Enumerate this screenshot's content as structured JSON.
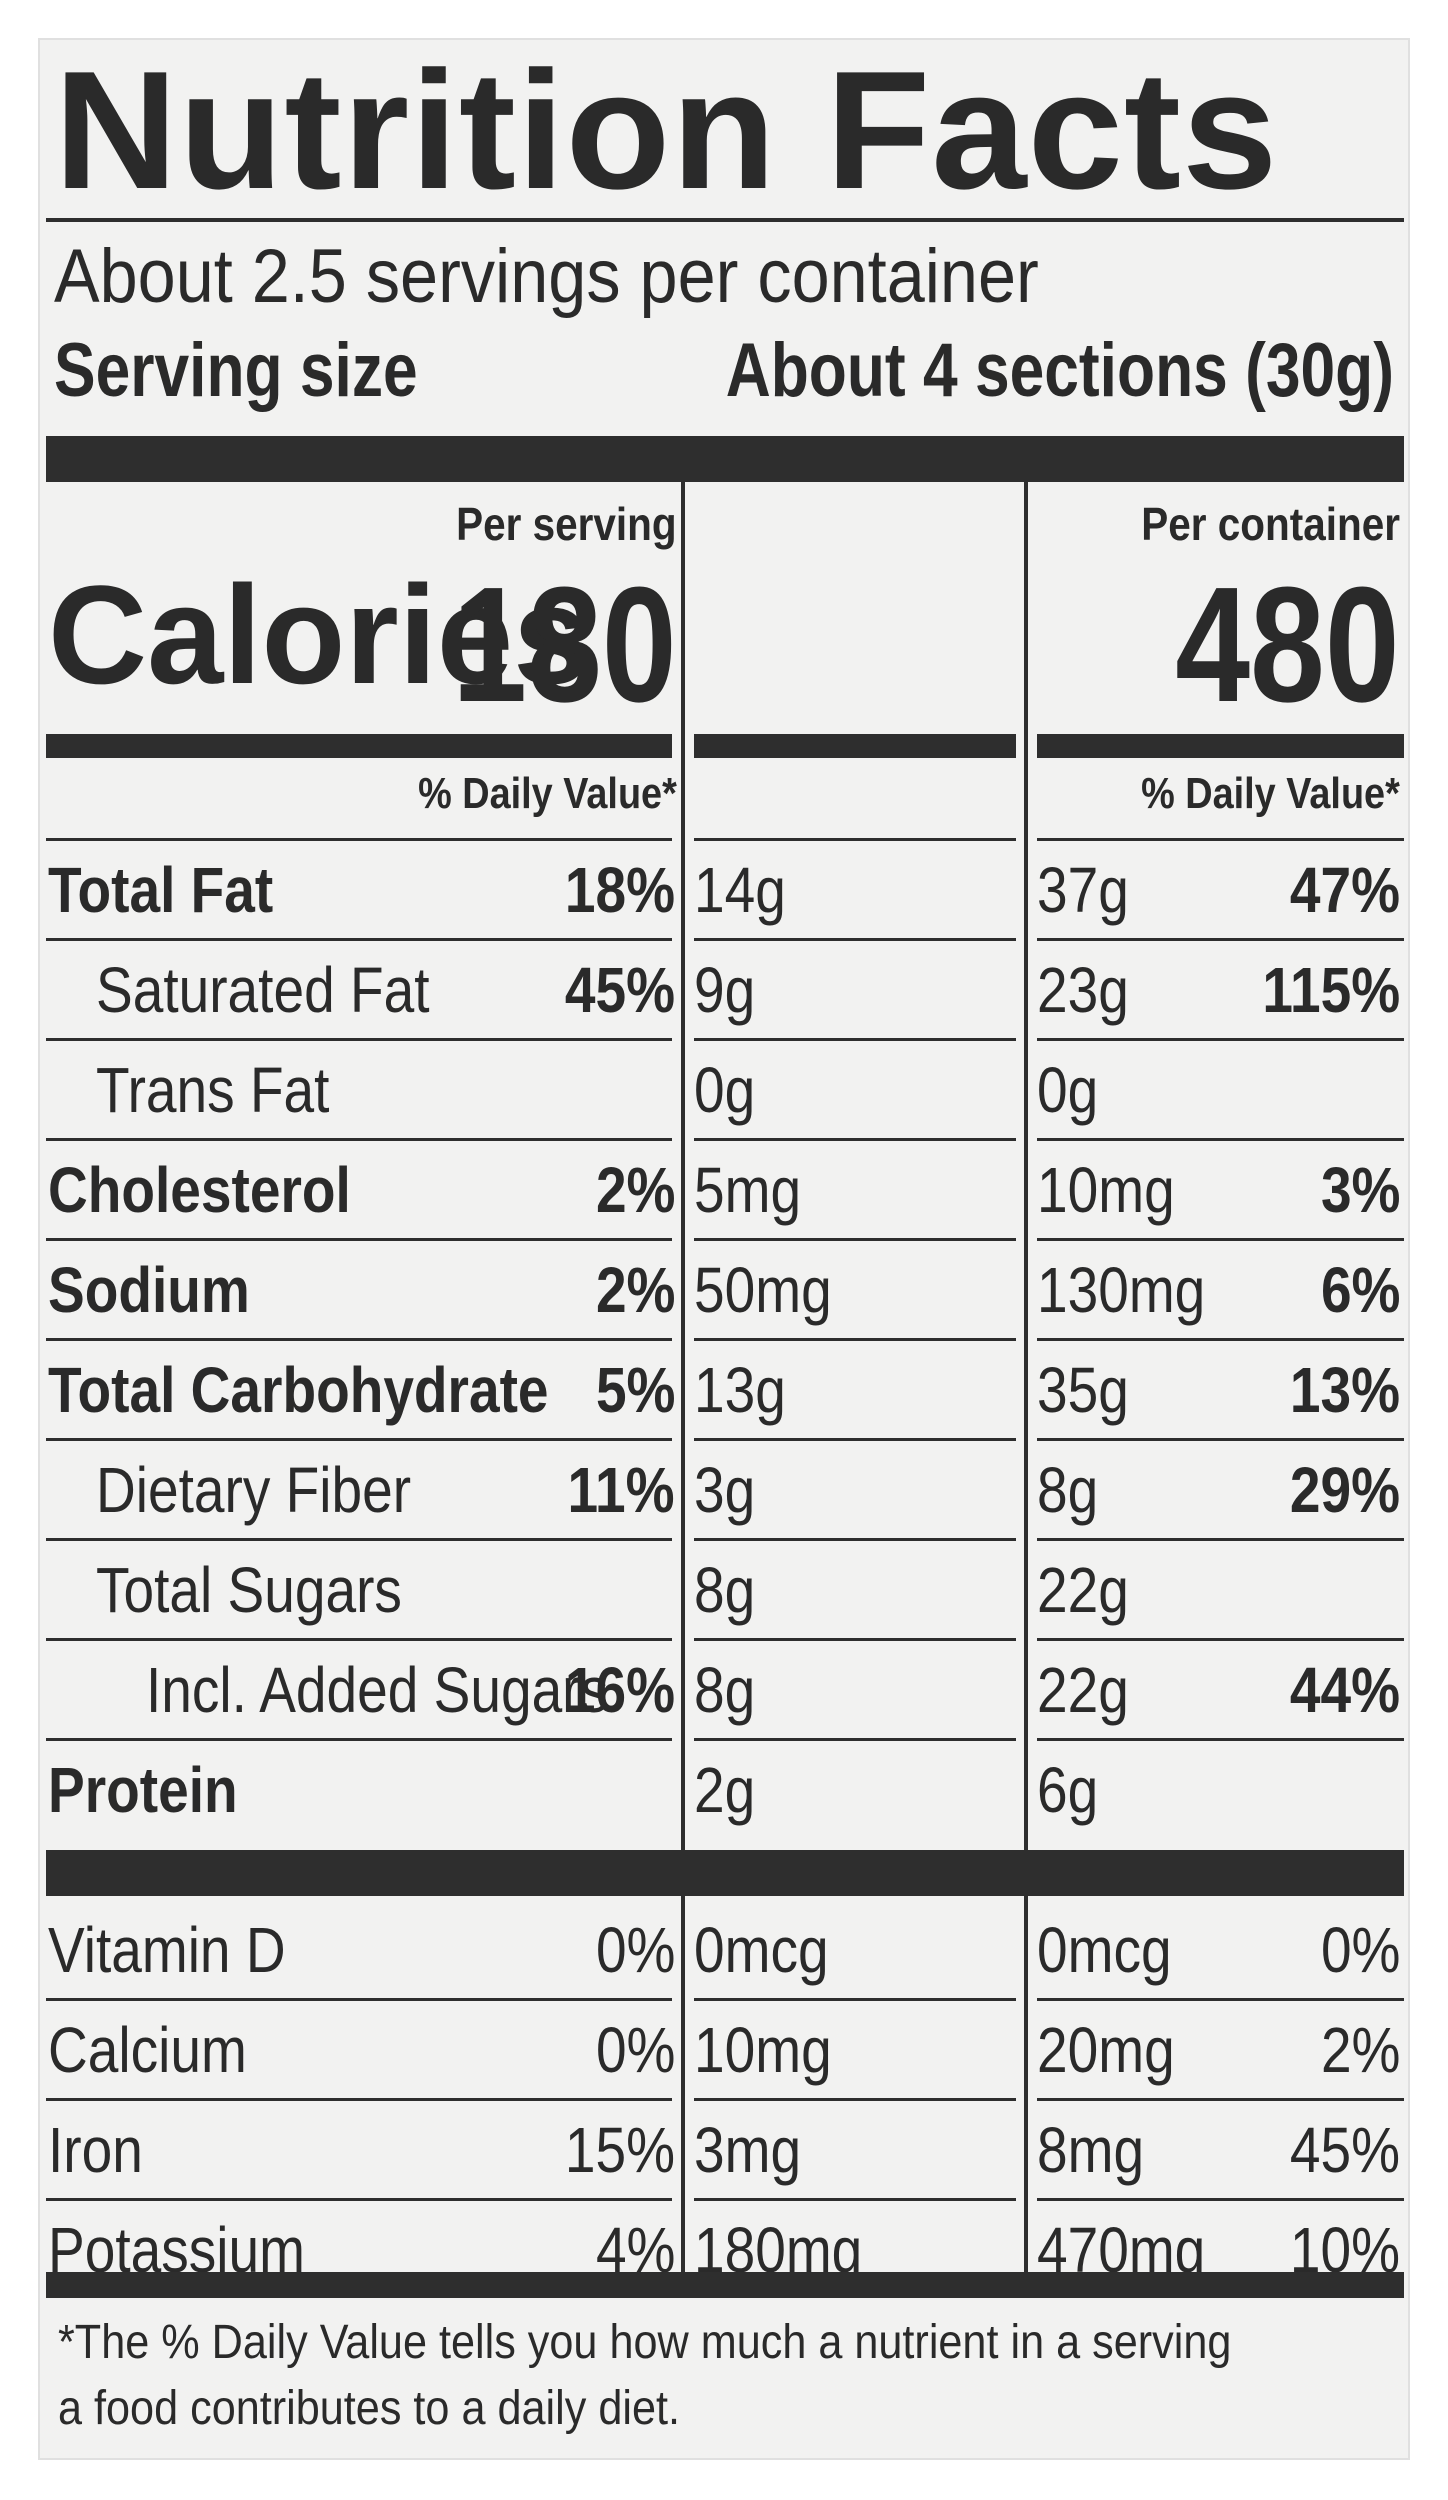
{
  "title": "Nutrition Facts",
  "servings_per_container": "About 2.5 servings per container",
  "serving_size_label": "Serving size",
  "serving_size_value": "About 4 sections (30g)",
  "columns": [
    {
      "header": "Per serving",
      "calories": "180",
      "dv_header": "% Daily Value*"
    },
    {
      "header": "Per container",
      "calories": "480",
      "dv_header": "% Daily Value*"
    }
  ],
  "calories_label": "Calories",
  "nutrients": [
    {
      "name": "Total Fat",
      "bold": true,
      "indent": 0,
      "serving": {
        "amount": "14g",
        "dv": "18%"
      },
      "container": {
        "amount": "37g",
        "dv": "47%"
      }
    },
    {
      "name": "Saturated Fat",
      "bold": false,
      "indent": 1,
      "serving": {
        "amount": "9g",
        "dv": "45%"
      },
      "container": {
        "amount": "23g",
        "dv": "115%"
      }
    },
    {
      "name": "Trans Fat",
      "bold": false,
      "indent": 1,
      "serving": {
        "amount": "0g",
        "dv": ""
      },
      "container": {
        "amount": "0g",
        "dv": ""
      }
    },
    {
      "name": "Cholesterol",
      "bold": true,
      "indent": 0,
      "serving": {
        "amount": "5mg",
        "dv": "2%"
      },
      "container": {
        "amount": "10mg",
        "dv": "3%"
      }
    },
    {
      "name": "Sodium",
      "bold": true,
      "indent": 0,
      "serving": {
        "amount": "50mg",
        "dv": "2%"
      },
      "container": {
        "amount": "130mg",
        "dv": "6%"
      }
    },
    {
      "name": "Total Carbohydrate",
      "bold": true,
      "indent": 0,
      "serving": {
        "amount": "13g",
        "dv": "5%"
      },
      "container": {
        "amount": "35g",
        "dv": "13%"
      }
    },
    {
      "name": "Dietary Fiber",
      "bold": false,
      "indent": 1,
      "serving": {
        "amount": "3g",
        "dv": "11%"
      },
      "container": {
        "amount": "8g",
        "dv": "29%"
      }
    },
    {
      "name": "Total Sugars",
      "bold": false,
      "indent": 1,
      "serving": {
        "amount": "8g",
        "dv": ""
      },
      "container": {
        "amount": "22g",
        "dv": ""
      }
    },
    {
      "name": "Incl. Added Sugars",
      "bold": false,
      "indent": 2,
      "serving": {
        "amount": "8g",
        "dv": "16%"
      },
      "container": {
        "amount": "22g",
        "dv": "44%"
      }
    },
    {
      "name": "Protein",
      "bold": true,
      "indent": 0,
      "serving": {
        "amount": "2g",
        "dv": ""
      },
      "container": {
        "amount": "6g",
        "dv": ""
      }
    }
  ],
  "vitamins": [
    {
      "name": "Vitamin D",
      "serving": {
        "amount": "0mcg",
        "dv": "0%"
      },
      "container": {
        "amount": "0mcg",
        "dv": "0%"
      }
    },
    {
      "name": "Calcium",
      "serving": {
        "amount": "10mg",
        "dv": "0%"
      },
      "container": {
        "amount": "20mg",
        "dv": "2%"
      }
    },
    {
      "name": "Iron",
      "serving": {
        "amount": "3mg",
        "dv": "15%"
      },
      "container": {
        "amount": "8mg",
        "dv": "45%"
      }
    },
    {
      "name": "Potassium",
      "serving": {
        "amount": "180mg",
        "dv": "4%"
      },
      "container": {
        "amount": "470mg",
        "dv": "10%"
      }
    }
  ],
  "footnote": "*The % Daily Value tells you how much a nutrient in a serving a food contributes to a daily diet."
}
